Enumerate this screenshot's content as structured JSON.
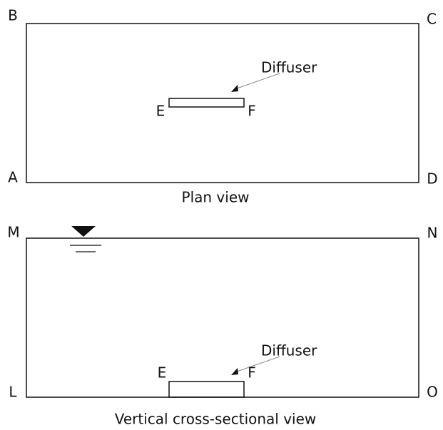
{
  "plan_view": {
    "corners": [
      "B",
      "C",
      "A",
      "D"
    ],
    "diffuser_label": "Diffuser",
    "ends": [
      "E",
      "F"
    ],
    "caption": "Plan view"
  },
  "section_view": {
    "corners": [
      "M",
      "N",
      "L",
      "O"
    ],
    "diffuser_label": "Diffuser",
    "ends": [
      "E",
      "F"
    ],
    "caption": "Vertical cross-sectional view"
  }
}
